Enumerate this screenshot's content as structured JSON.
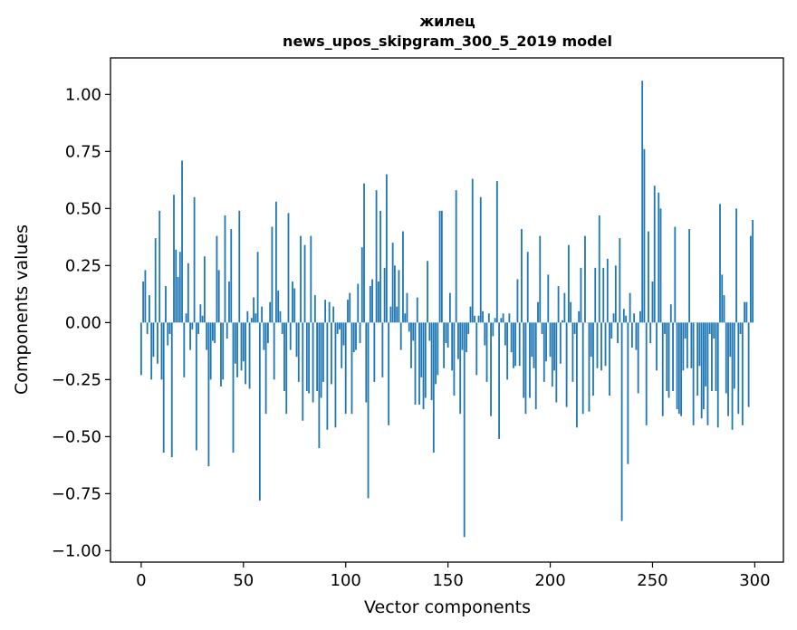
{
  "chart_data": {
    "type": "bar",
    "title": "жилец",
    "subtitle": "news_upos_skipgram_300_5_2019 model",
    "xlabel": "Vector components",
    "ylabel": "Components values",
    "xlim": [
      -15,
      314
    ],
    "ylim": [
      -1.05,
      1.16
    ],
    "xticks": [
      0,
      50,
      100,
      150,
      200,
      250,
      300
    ],
    "xtick_labels": [
      "0",
      "50",
      "100",
      "150",
      "200",
      "250",
      "300"
    ],
    "yticks": [
      -1.0,
      -0.75,
      -0.5,
      -0.25,
      0.0,
      0.25,
      0.5,
      0.75,
      1.0
    ],
    "ytick_labels": [
      "−1.00",
      "−0.75",
      "−0.50",
      "−0.25",
      "0.00",
      "0.25",
      "0.50",
      "0.75",
      "1.00"
    ],
    "grid": false,
    "bar_color": "#1f77b4",
    "values": [
      -0.23,
      0.18,
      0.23,
      -0.05,
      0.12,
      -0.25,
      -0.15,
      0.37,
      -0.18,
      0.49,
      -0.25,
      -0.57,
      0.16,
      -0.1,
      -0.05,
      -0.59,
      0.56,
      0.32,
      0.2,
      0.31,
      0.71,
      -0.24,
      0.04,
      0.26,
      -0.12,
      -0.03,
      0.55,
      -0.56,
      -0.05,
      0.08,
      0.03,
      0.29,
      -0.12,
      -0.63,
      -0.25,
      -0.08,
      -0.09,
      0.38,
      0.23,
      -0.28,
      -0.25,
      0.47,
      -0.07,
      0.18,
      0.41,
      -0.57,
      -0.18,
      -0.24,
      0.49,
      -0.21,
      -0.17,
      -0.27,
      0.05,
      -0.29,
      0.02,
      0.11,
      0.04,
      0.31,
      -0.78,
      0.07,
      -0.12,
      -0.4,
      -0.09,
      0.09,
      0.42,
      -0.25,
      0.53,
      0.14,
      0.05,
      -0.05,
      -0.3,
      -0.4,
      0.48,
      -0.12,
      0.18,
      0.15,
      -0.15,
      -0.26,
      0.38,
      -0.43,
      0.34,
      -0.3,
      -0.31,
      0.38,
      -0.35,
      0.12,
      -0.3,
      -0.55,
      -0.33,
      -0.26,
      0.1,
      -0.47,
      0.09,
      -0.27,
      0.07,
      -0.46,
      -0.05,
      -0.03,
      -0.2,
      -0.1,
      -0.4,
      0.1,
      0.13,
      -0.4,
      -0.13,
      -0.12,
      0.17,
      -0.09,
      0.33,
      0.61,
      -0.35,
      -0.77,
      0.16,
      0.19,
      -0.26,
      0.58,
      0.18,
      0.49,
      -0.24,
      0.24,
      0.65,
      -0.45,
      0.07,
      0.35,
      0.25,
      0.07,
      0.23,
      -0.12,
      0.4,
      0.04,
      0.13,
      -0.04,
      -0.2,
      -0.08,
      -0.36,
      0.11,
      -0.36,
      -0.24,
      -0.38,
      -0.33,
      0.27,
      -0.08,
      -0.34,
      -0.57,
      -0.27,
      -0.23,
      0.49,
      0.49,
      -0.2,
      -0.09,
      -0.11,
      0.13,
      -0.21,
      -0.32,
      0.58,
      -0.16,
      -0.4,
      -0.12,
      -0.94,
      -0.13,
      -0.05,
      0.07,
      0.63,
      0.03,
      -0.23,
      0.03,
      0.55,
      0.05,
      -0.1,
      -0.26,
      0.04,
      -0.41,
      -0.06,
      0.02,
      0.62,
      -0.51,
      0.02,
      0.04,
      -0.1,
      -0.25,
      0.04,
      -0.13,
      -0.2,
      -0.19,
      0.19,
      -0.19,
      0.41,
      -0.33,
      -0.4,
      0.31,
      -0.33,
      -0.15,
      -0.2,
      -0.38,
      0.09,
      0.38,
      -0.05,
      -0.26,
      -0.17,
      0.21,
      -0.15,
      -0.28,
      -0.21,
      -0.35,
      0.16,
      -0.18,
      0.01,
      0.13,
      -0.37,
      0.34,
      0.09,
      -0.26,
      -0.05,
      -0.46,
      0.05,
      0.24,
      -0.4,
      0.38,
      0.0,
      -0.39,
      -0.15,
      -0.32,
      0.24,
      -0.2,
      0.47,
      -0.21,
      0.24,
      -0.19,
      0.28,
      -0.32,
      -0.07,
      0.04,
      0.25,
      -0.09,
      0.37,
      -0.87,
      0.06,
      0.03,
      -0.62,
      0.13,
      -0.11,
      0.04,
      -0.12,
      -0.31,
      0.05,
      1.06,
      0.76,
      -0.45,
      0.4,
      -0.09,
      0.18,
      0.6,
      -0.21,
      0.57,
      0.5,
      -0.41,
      -0.05,
      -0.3,
      -0.33,
      0.08,
      -0.3,
      0.42,
      -0.38,
      -0.4,
      -0.41,
      -0.21,
      -0.07,
      -0.2,
      0.41,
      -0.2,
      -0.45,
      0.0,
      -0.32,
      -0.19,
      -0.42,
      -0.38,
      -0.28,
      -0.45,
      -0.05,
      -0.3,
      -0.07,
      -0.3,
      -0.46,
      0.52,
      0.21,
      0.12,
      -0.31,
      -0.41,
      -0.15,
      -0.47,
      -0.29,
      0.5,
      -0.4,
      -0.05,
      -0.45,
      0.09,
      0.09,
      -0.37,
      0.38,
      0.45
    ]
  }
}
